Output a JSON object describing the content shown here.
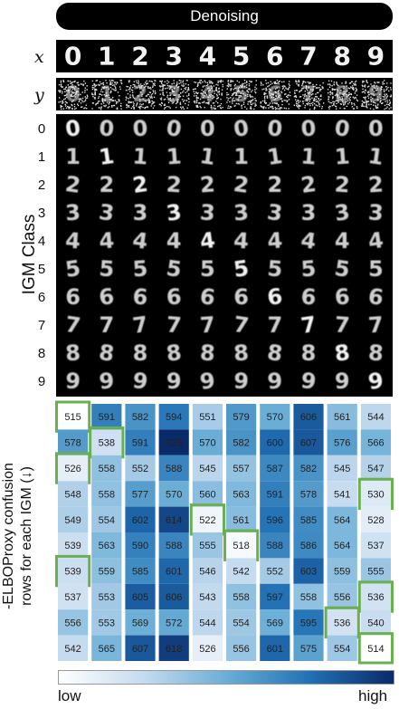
{
  "title": "Denoising",
  "row_labels": {
    "x": "x",
    "y": "y"
  },
  "class_axis_label": "IGM Class",
  "class_labels": [
    "0",
    "1",
    "2",
    "3",
    "4",
    "5",
    "6",
    "7",
    "8",
    "9"
  ],
  "input_digits": [
    "0",
    "1",
    "2",
    "3",
    "4",
    "5",
    "6",
    "7",
    "8",
    "9"
  ],
  "matrix_axis_label_line1": "-ELBOProxy confusion",
  "matrix_axis_label_line2": "rows for each IGM (↓)",
  "colorbar": {
    "low": "low",
    "high": "high"
  },
  "highlight_color": "#6ab04c",
  "matrix": [
    [
      515,
      591,
      582,
      594,
      551,
      579,
      570,
      606,
      561,
      544
    ],
    [
      578,
      538,
      591,
      625,
      570,
      582,
      600,
      607,
      576,
      566
    ],
    [
      526,
      558,
      552,
      588,
      545,
      557,
      587,
      582,
      545,
      547
    ],
    [
      548,
      558,
      577,
      570,
      560,
      563,
      591,
      578,
      541,
      530
    ],
    [
      549,
      554,
      602,
      614,
      522,
      561,
      596,
      585,
      564,
      528
    ],
    [
      539,
      563,
      590,
      588,
      555,
      518,
      588,
      586,
      564,
      537
    ],
    [
      539,
      559,
      585,
      601,
      546,
      542,
      552,
      603,
      559,
      555
    ],
    [
      537,
      553,
      605,
      606,
      543,
      558,
      597,
      558,
      556,
      536
    ],
    [
      556,
      553,
      569,
      572,
      544,
      554,
      569,
      595,
      536,
      540
    ],
    [
      542,
      565,
      607,
      618,
      526,
      556,
      601,
      575,
      554,
      514
    ]
  ]
}
